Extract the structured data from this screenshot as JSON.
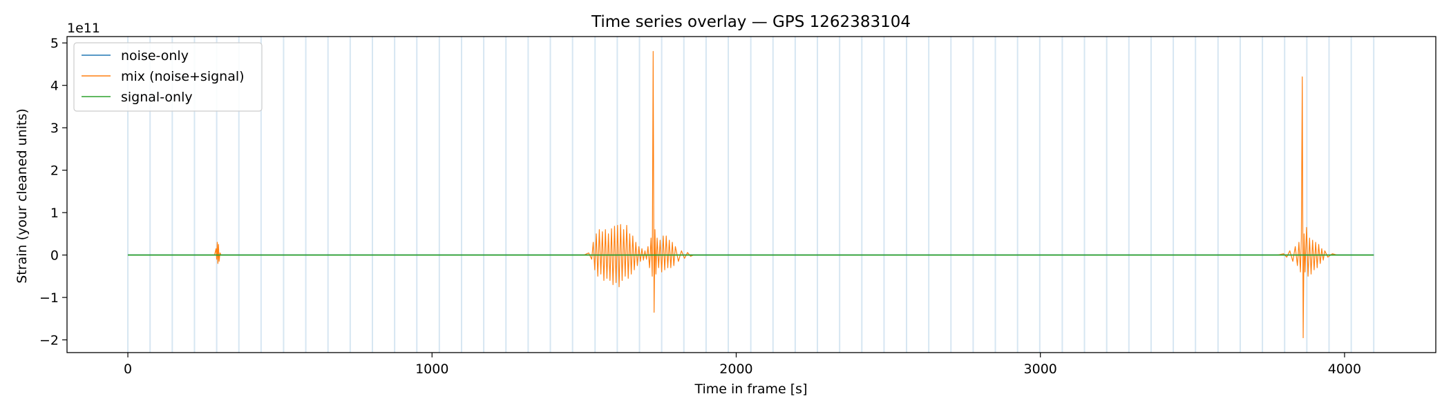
{
  "chart_data": {
    "type": "line",
    "title": "Time series overlay — GPS 1262383104",
    "xlabel": "Time in frame [s]",
    "ylabel": "Strain (your cleaned units)",
    "y_offset_label": "1e11",
    "xlim": [
      -200,
      4300
    ],
    "ylim": [
      -2.3,
      5.15
    ],
    "x_ticks": [
      0,
      1000,
      2000,
      3000,
      4000
    ],
    "x_tick_labels": [
      "0",
      "1000",
      "2000",
      "3000",
      "4000"
    ],
    "y_ticks": [
      -2,
      -1,
      0,
      1,
      2,
      3,
      4,
      5
    ],
    "y_tick_labels": [
      "−2",
      "−1",
      "0",
      "1",
      "2",
      "3",
      "4",
      "5"
    ],
    "grid": false,
    "legend_position": "top-left",
    "series": [
      {
        "name": "noise-only",
        "color": "#1f77b4",
        "points": [
          [
            0,
            0
          ],
          [
            4096,
            0
          ]
        ]
      },
      {
        "name": "mix (noise+signal)",
        "color": "#ff7f0e",
        "points": [
          [
            0,
            0
          ],
          [
            285,
            0
          ],
          [
            290,
            0.15
          ],
          [
            292,
            -0.1
          ],
          [
            294,
            0.3
          ],
          [
            296,
            -0.2
          ],
          [
            298,
            0.25
          ],
          [
            300,
            -0.15
          ],
          [
            303,
            0.05
          ],
          [
            306,
            0
          ],
          [
            1500,
            0
          ],
          [
            1515,
            0.05
          ],
          [
            1525,
            -0.1
          ],
          [
            1530,
            0.3
          ],
          [
            1535,
            -0.35
          ],
          [
            1540,
            0.5
          ],
          [
            1545,
            -0.5
          ],
          [
            1550,
            0.6
          ],
          [
            1555,
            -0.45
          ],
          [
            1560,
            0.55
          ],
          [
            1565,
            -0.6
          ],
          [
            1570,
            0.6
          ],
          [
            1575,
            -0.55
          ],
          [
            1580,
            0.5
          ],
          [
            1585,
            -0.6
          ],
          [
            1590,
            0.62
          ],
          [
            1595,
            -0.7
          ],
          [
            1600,
            0.68
          ],
          [
            1605,
            -0.65
          ],
          [
            1610,
            0.7
          ],
          [
            1615,
            -0.75
          ],
          [
            1620,
            0.72
          ],
          [
            1625,
            -0.6
          ],
          [
            1630,
            0.6
          ],
          [
            1635,
            -0.5
          ],
          [
            1640,
            0.7
          ],
          [
            1645,
            -0.55
          ],
          [
            1650,
            0.5
          ],
          [
            1655,
            -0.45
          ],
          [
            1660,
            0.45
          ],
          [
            1665,
            -0.35
          ],
          [
            1670,
            0.3
          ],
          [
            1675,
            -0.25
          ],
          [
            1680,
            0.2
          ],
          [
            1685,
            -0.15
          ],
          [
            1690,
            0.15
          ],
          [
            1695,
            -0.12
          ],
          [
            1700,
            0.1
          ],
          [
            1705,
            -0.1
          ],
          [
            1710,
            0.2
          ],
          [
            1715,
            -0.3
          ],
          [
            1720,
            0.4
          ],
          [
            1724,
            -0.5
          ],
          [
            1727,
            4.8
          ],
          [
            1730,
            -1.35
          ],
          [
            1733,
            0.6
          ],
          [
            1736,
            -0.45
          ],
          [
            1740,
            0.4
          ],
          [
            1745,
            -0.3
          ],
          [
            1750,
            0.35
          ],
          [
            1755,
            -0.4
          ],
          [
            1760,
            0.45
          ],
          [
            1765,
            -0.35
          ],
          [
            1770,
            0.45
          ],
          [
            1775,
            -0.3
          ],
          [
            1780,
            0.35
          ],
          [
            1785,
            -0.3
          ],
          [
            1790,
            0.3
          ],
          [
            1795,
            -0.25
          ],
          [
            1800,
            0.2
          ],
          [
            1810,
            -0.15
          ],
          [
            1820,
            0.1
          ],
          [
            1830,
            -0.08
          ],
          [
            1840,
            0.06
          ],
          [
            1850,
            -0.03
          ],
          [
            1860,
            0
          ],
          [
            3780,
            0
          ],
          [
            3800,
            0.03
          ],
          [
            3810,
            -0.05
          ],
          [
            3820,
            0.1
          ],
          [
            3830,
            -0.15
          ],
          [
            3838,
            0.2
          ],
          [
            3845,
            -0.25
          ],
          [
            3850,
            0.3
          ],
          [
            3855,
            -0.4
          ],
          [
            3858,
            0.4
          ],
          [
            3861,
            4.2
          ],
          [
            3864,
            -1.95
          ],
          [
            3867,
            0.5
          ],
          [
            3870,
            -0.4
          ],
          [
            3875,
            0.65
          ],
          [
            3880,
            -0.5
          ],
          [
            3885,
            0.4
          ],
          [
            3890,
            -0.45
          ],
          [
            3895,
            0.35
          ],
          [
            3900,
            -0.35
          ],
          [
            3905,
            0.3
          ],
          [
            3910,
            -0.3
          ],
          [
            3915,
            0.25
          ],
          [
            3920,
            -0.2
          ],
          [
            3925,
            0.15
          ],
          [
            3930,
            -0.12
          ],
          [
            3935,
            0.1
          ],
          [
            3945,
            -0.05
          ],
          [
            3960,
            0.03
          ],
          [
            3975,
            0
          ],
          [
            4096,
            0
          ]
        ]
      },
      {
        "name": "signal-only",
        "color": "#2ca02c",
        "points": [
          [
            0,
            0
          ],
          [
            4096,
            0
          ]
        ]
      }
    ],
    "frame_boundaries": [
      0,
      73,
      146,
      219,
      292,
      365,
      438,
      512,
      585,
      658,
      731,
      804,
      877,
      950,
      1024,
      1097,
      1170,
      1243,
      1316,
      1389,
      1462,
      1536,
      1609,
      1682,
      1755,
      1828,
      1901,
      1974,
      2048,
      2121,
      2194,
      2267,
      2340,
      2413,
      2486,
      2560,
      2633,
      2706,
      2779,
      2852,
      2925,
      2998,
      3072,
      3145,
      3218,
      3291,
      3364,
      3437,
      3510,
      3584,
      3657,
      3730,
      3803,
      3876,
      3949,
      4022,
      4096
    ],
    "frame_boundary_color": "#d6e6f2"
  }
}
